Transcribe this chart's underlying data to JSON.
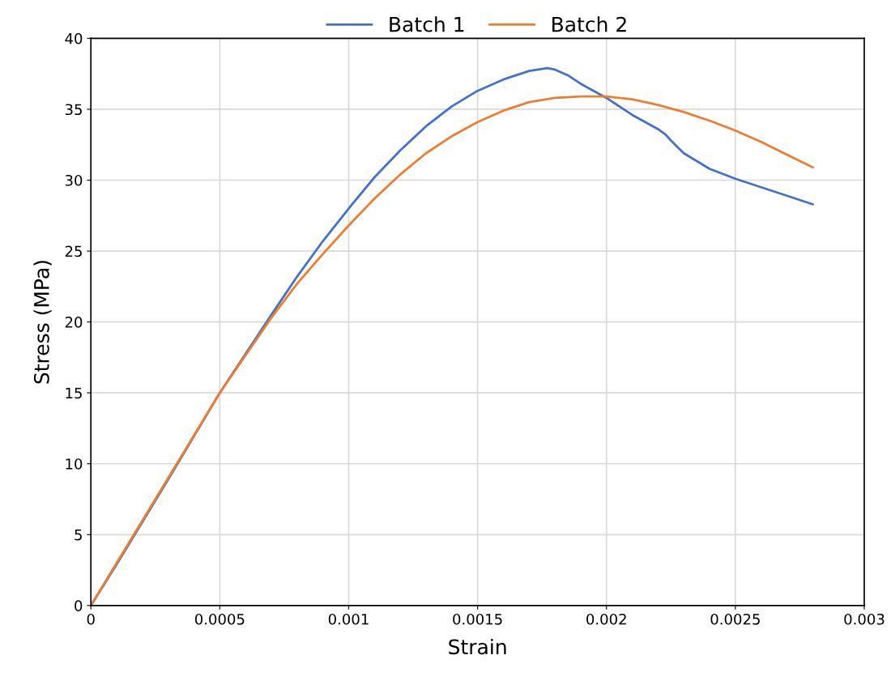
{
  "chart_data": {
    "type": "line",
    "xlabel": "Strain",
    "ylabel": "Stress (MPa)",
    "xlim": [
      0,
      0.003
    ],
    "xticks": [
      0,
      0.0005,
      0.001,
      0.0015,
      0.002,
      0.0025,
      0.003
    ],
    "ylim": [
      0,
      40
    ],
    "yticks": [
      0,
      5,
      10,
      15,
      20,
      25,
      30,
      35,
      40
    ],
    "grid": true,
    "legend": "top",
    "marker": "none",
    "line_style": "solid",
    "series": [
      {
        "name": "Batch 1",
        "color": "#4472c4",
        "x": [
          0,
          0.0001,
          0.0002,
          0.0003,
          0.0005,
          0.0007,
          0.0008,
          0.0009,
          0.001,
          0.0011,
          0.0012,
          0.0013,
          0.0014,
          0.0015,
          0.0016,
          0.0017,
          0.00177,
          0.0018,
          0.00185,
          0.0019,
          0.002,
          0.0021,
          0.0022,
          0.00223,
          0.00225,
          0.0023,
          0.0024,
          0.0025,
          0.0026,
          0.0027,
          0.0028
        ],
        "values": [
          0,
          2.9,
          5.9,
          8.9,
          15,
          20.5,
          23.2,
          25.7,
          28,
          30.2,
          32.1,
          33.8,
          35.2,
          36.3,
          37.1,
          37.7,
          37.9,
          37.8,
          37.4,
          36.8,
          35.8,
          34.6,
          33.6,
          33.2,
          32.8,
          31.9,
          30.8,
          30.1,
          29.5,
          28.9,
          28.3
        ]
      },
      {
        "name": "Batch 2",
        "color": "#ed7d31",
        "x": [
          0,
          0.0001,
          0.0002,
          0.0003,
          0.0005,
          0.0007,
          0.0008,
          0.0009,
          0.001,
          0.0011,
          0.0012,
          0.0013,
          0.0014,
          0.0015,
          0.0016,
          0.0017,
          0.0018,
          0.0019,
          0.002,
          0.0021,
          0.0022,
          0.0023,
          0.0024,
          0.0025,
          0.0026,
          0.0027,
          0.0028
        ],
        "values": [
          0,
          3,
          6,
          9,
          15,
          20.3,
          22.7,
          24.8,
          26.8,
          28.7,
          30.4,
          31.9,
          33.1,
          34.1,
          34.9,
          35.5,
          35.8,
          35.9,
          35.9,
          35.7,
          35.3,
          34.8,
          34.2,
          33.5,
          32.7,
          31.8,
          30.9
        ]
      }
    ]
  }
}
